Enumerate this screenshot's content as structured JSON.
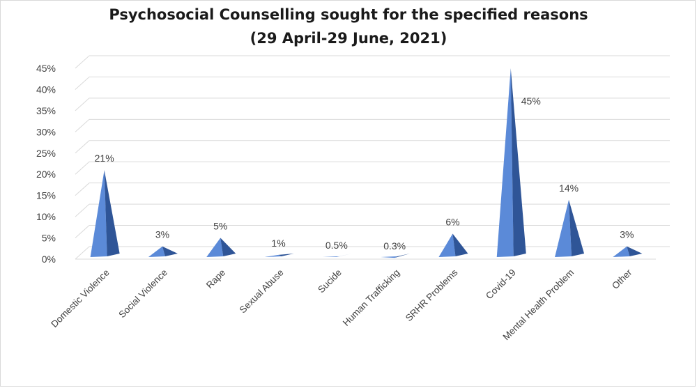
{
  "chart_data": {
    "type": "bar",
    "bar_shape": "pyramid",
    "title": "Psychosocial Counselling sought for the specified reasons",
    "subtitle": "(29 April-29 June, 2021)",
    "xlabel": "",
    "ylabel": "",
    "ylim": [
      0,
      45
    ],
    "yticks": [
      "0%",
      "5%",
      "10%",
      "15%",
      "20%",
      "25%",
      "30%",
      "35%",
      "40%",
      "45%"
    ],
    "grid": true,
    "legend": "none",
    "categories": [
      "Domestic Violence",
      "Social Violence",
      "Rape",
      "Sexual Abuse",
      "Sucide",
      "Human Trafficking",
      "SRHR Problems",
      "Covid-19",
      "Mental Health Problem",
      "Other"
    ],
    "values": [
      21,
      3,
      5,
      1,
      0.5,
      0.3,
      6,
      45,
      14,
      3
    ],
    "data_labels": [
      "21%",
      "3%",
      "5%",
      "1%",
      "0.5%",
      "0.3%",
      "6%",
      "45%",
      "14%",
      "3%"
    ],
    "colors": {
      "bar": "#4472C4",
      "bar_light": "#5b8ad8",
      "bar_dark": "#2f5597",
      "grid": "#d9d9d9",
      "text": "#404040"
    }
  }
}
